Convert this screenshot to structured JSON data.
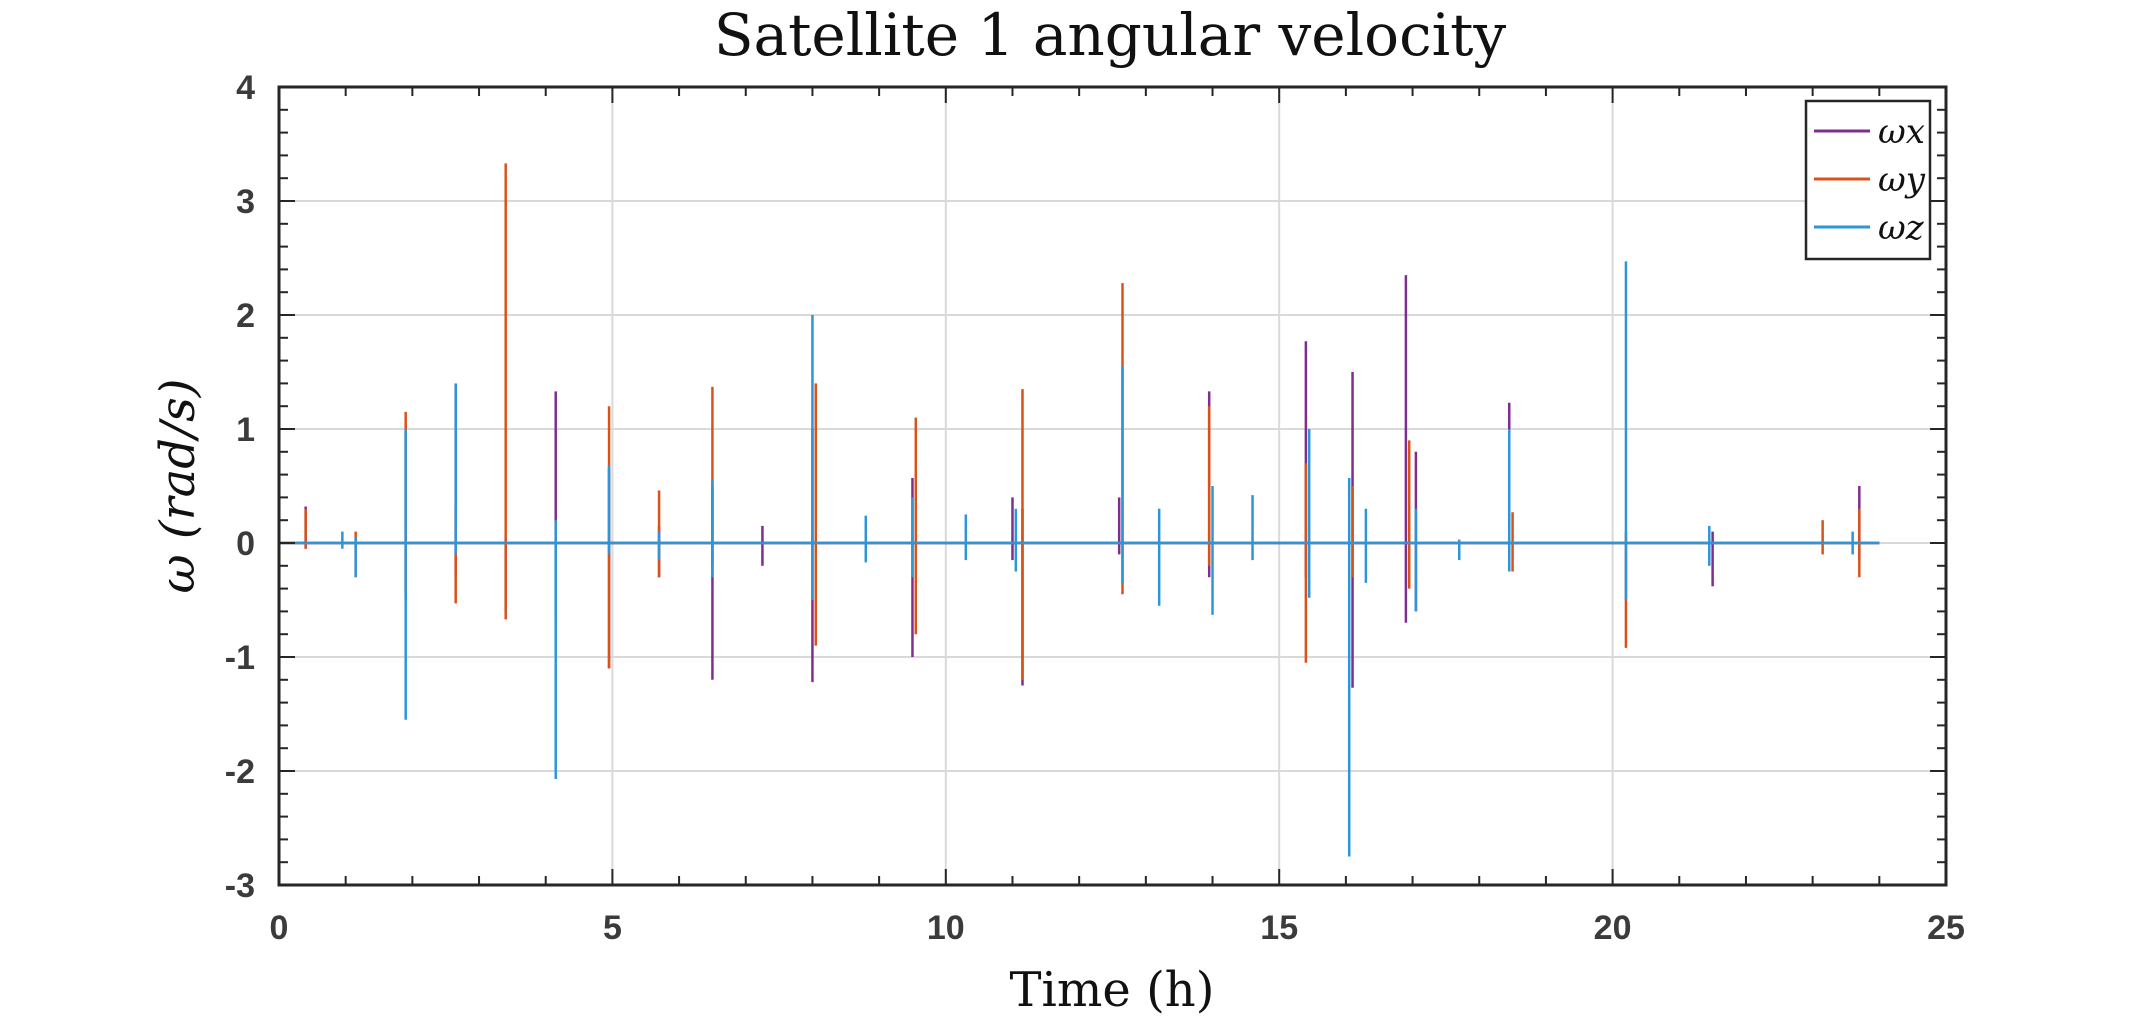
{
  "chart_data": {
    "type": "line",
    "title": "Satellite 1 angular velocity",
    "xlabel": "Time (h)",
    "ylabel": "ω (rad/s)",
    "xlim": [
      0,
      25
    ],
    "ylim": [
      -3,
      4
    ],
    "xticks": [
      "0",
      "5",
      "10",
      "15",
      "20",
      "25"
    ],
    "yticks": [
      "-3",
      "-2",
      "-1",
      "0",
      "1",
      "2",
      "3",
      "4"
    ],
    "grid": true,
    "legend_position": "top-right",
    "series": [
      {
        "name": "ωx",
        "color": "#7E2F8E",
        "spikes": [
          [
            0.4,
            0.32,
            -0.05
          ],
          [
            1.9,
            1.0,
            -0.5
          ],
          [
            2.65,
            1.39,
            -0.3
          ],
          [
            3.4,
            0.05,
            -0.6
          ],
          [
            4.15,
            1.33,
            -0.7
          ],
          [
            4.95,
            0.65,
            -1.1
          ],
          [
            5.7,
            0.15,
            -0.3
          ],
          [
            6.5,
            0.5,
            -1.2
          ],
          [
            7.25,
            0.15,
            -0.2
          ],
          [
            8.0,
            1.0,
            -1.22
          ],
          [
            9.5,
            0.57,
            -1.0
          ],
          [
            11.0,
            0.4,
            -0.15
          ],
          [
            11.15,
            0.3,
            -1.25
          ],
          [
            12.6,
            0.4,
            -0.1
          ],
          [
            13.95,
            1.33,
            -0.3
          ],
          [
            15.4,
            1.77,
            -0.3
          ],
          [
            16.1,
            1.5,
            -1.27
          ],
          [
            16.9,
            2.35,
            -0.7
          ],
          [
            17.05,
            0.8,
            -0.6
          ],
          [
            18.45,
            1.23,
            -0.2
          ],
          [
            21.5,
            0.1,
            -0.38
          ],
          [
            23.7,
            0.5,
            -0.15
          ]
        ]
      },
      {
        "name": "ωy",
        "color": "#D95319",
        "spikes": [
          [
            0.4,
            0.3,
            -0.05
          ],
          [
            1.15,
            0.1,
            -0.3
          ],
          [
            1.9,
            1.15,
            -0.45
          ],
          [
            2.65,
            0.3,
            -0.53
          ],
          [
            3.4,
            3.33,
            -0.67
          ],
          [
            4.95,
            1.2,
            -1.1
          ],
          [
            5.7,
            0.46,
            -0.3
          ],
          [
            6.5,
            1.37,
            -0.2
          ],
          [
            8.05,
            1.4,
            -0.9
          ],
          [
            9.55,
            1.1,
            -0.8
          ],
          [
            11.15,
            1.35,
            -1.2
          ],
          [
            12.65,
            2.28,
            -0.45
          ],
          [
            13.95,
            1.2,
            -0.2
          ],
          [
            15.4,
            0.7,
            -1.05
          ],
          [
            16.1,
            0.5,
            -0.3
          ],
          [
            16.95,
            0.9,
            -0.4
          ],
          [
            18.5,
            0.27,
            -0.25
          ],
          [
            20.2,
            0.1,
            -0.92
          ],
          [
            23.15,
            0.2,
            -0.1
          ],
          [
            23.7,
            0.3,
            -0.3
          ]
        ]
      },
      {
        "name": "ωz",
        "color": "#2E95D9",
        "spikes": [
          [
            0.0,
            0.4,
            -2.2
          ],
          [
            0.95,
            0.1,
            -0.05
          ],
          [
            1.15,
            0.05,
            -0.3
          ],
          [
            1.9,
            1.0,
            -1.55
          ],
          [
            2.65,
            1.4,
            -0.1
          ],
          [
            4.15,
            0.2,
            -2.07
          ],
          [
            4.95,
            0.68,
            -0.1
          ],
          [
            5.7,
            0.1,
            -0.15
          ],
          [
            6.5,
            0.55,
            -0.3
          ],
          [
            8.0,
            2.0,
            -0.5
          ],
          [
            8.8,
            0.24,
            -0.17
          ],
          [
            9.5,
            0.4,
            -0.3
          ],
          [
            10.3,
            0.25,
            -0.15
          ],
          [
            11.05,
            0.3,
            -0.25
          ],
          [
            12.65,
            1.55,
            -0.35
          ],
          [
            13.2,
            0.3,
            -0.55
          ],
          [
            14.0,
            0.5,
            -0.63
          ],
          [
            14.6,
            0.42,
            -0.15
          ],
          [
            15.45,
            1.0,
            -0.48
          ],
          [
            16.05,
            0.57,
            -2.75
          ],
          [
            16.3,
            0.3,
            -0.35
          ],
          [
            17.05,
            0.3,
            -0.6
          ],
          [
            17.7,
            0.03,
            -0.15
          ],
          [
            18.45,
            1.0,
            -0.25
          ],
          [
            20.2,
            2.47,
            -0.5
          ],
          [
            21.45,
            0.15,
            -0.2
          ],
          [
            23.6,
            0.1,
            -0.1
          ]
        ]
      }
    ]
  }
}
